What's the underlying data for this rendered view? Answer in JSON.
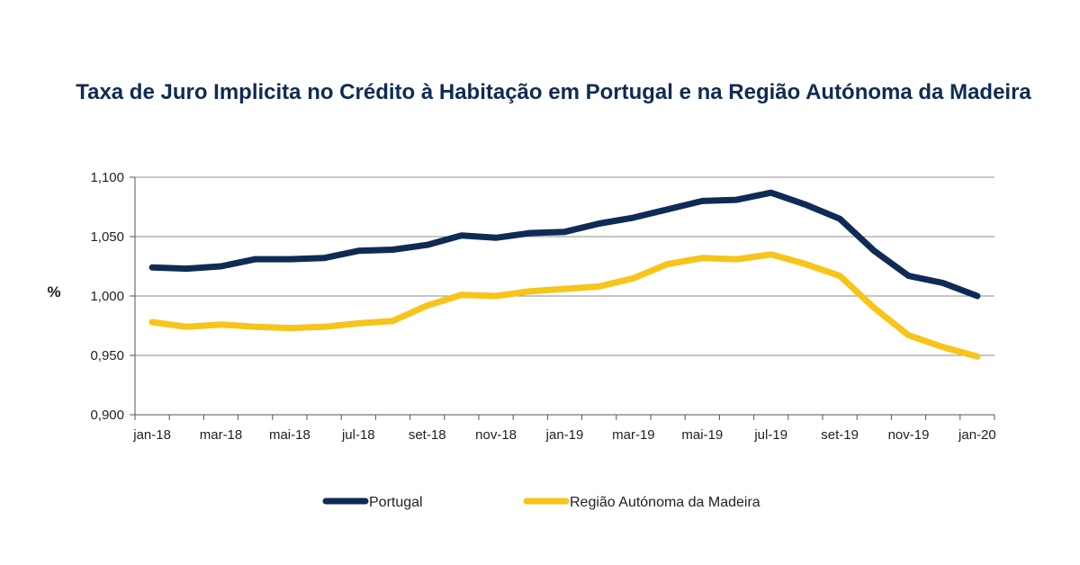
{
  "chart_data": {
    "type": "line",
    "title": "Taxa de Juro Implicita no Crédito à Habitação em Portugal e na Região Autónoma da Madeira",
    "ylabel": "%",
    "xlabel": "",
    "ylim": [
      0.9,
      1.1
    ],
    "yticks": [
      "0,900",
      "0,950",
      "1,000",
      "1,050",
      "1,100"
    ],
    "ytick_values": [
      0.9,
      0.95,
      1.0,
      1.05,
      1.1
    ],
    "x_tick_labels": [
      "jan-18",
      "mar-18",
      "mai-18",
      "jul-18",
      "set-18",
      "nov-18",
      "jan-19",
      "mar-19",
      "mai-19",
      "jul-19",
      "set-19",
      "nov-19",
      "jan-20"
    ],
    "categories": [
      "jan-18",
      "fev-18",
      "mar-18",
      "abr-18",
      "mai-18",
      "jun-18",
      "jul-18",
      "ago-18",
      "set-18",
      "out-18",
      "nov-18",
      "dez-18",
      "jan-19",
      "fev-19",
      "mar-19",
      "abr-19",
      "mai-19",
      "jun-19",
      "jul-19",
      "ago-19",
      "set-19",
      "out-19",
      "nov-19",
      "dez-19",
      "jan-20"
    ],
    "grid": true,
    "legend_position": "bottom",
    "series": [
      {
        "name": "Portugal",
        "color": "#0f2b55",
        "values": [
          1.024,
          1.023,
          1.025,
          1.031,
          1.031,
          1.032,
          1.038,
          1.039,
          1.043,
          1.051,
          1.049,
          1.053,
          1.054,
          1.061,
          1.066,
          1.073,
          1.08,
          1.081,
          1.087,
          1.077,
          1.065,
          1.038,
          1.017,
          1.011,
          1.0
        ]
      },
      {
        "name": "Região Autónoma da Madeira",
        "color": "#f7c41a",
        "values": [
          0.978,
          0.974,
          0.976,
          0.974,
          0.973,
          0.974,
          0.977,
          0.979,
          0.992,
          1.001,
          1.0,
          1.004,
          1.006,
          1.008,
          1.015,
          1.027,
          1.032,
          1.031,
          1.035,
          1.027,
          1.017,
          0.99,
          0.967,
          0.957,
          0.949
        ]
      }
    ]
  },
  "colors": {
    "title": "#0f2b55",
    "grid": "#8c8c8c",
    "axis": "#555555"
  }
}
